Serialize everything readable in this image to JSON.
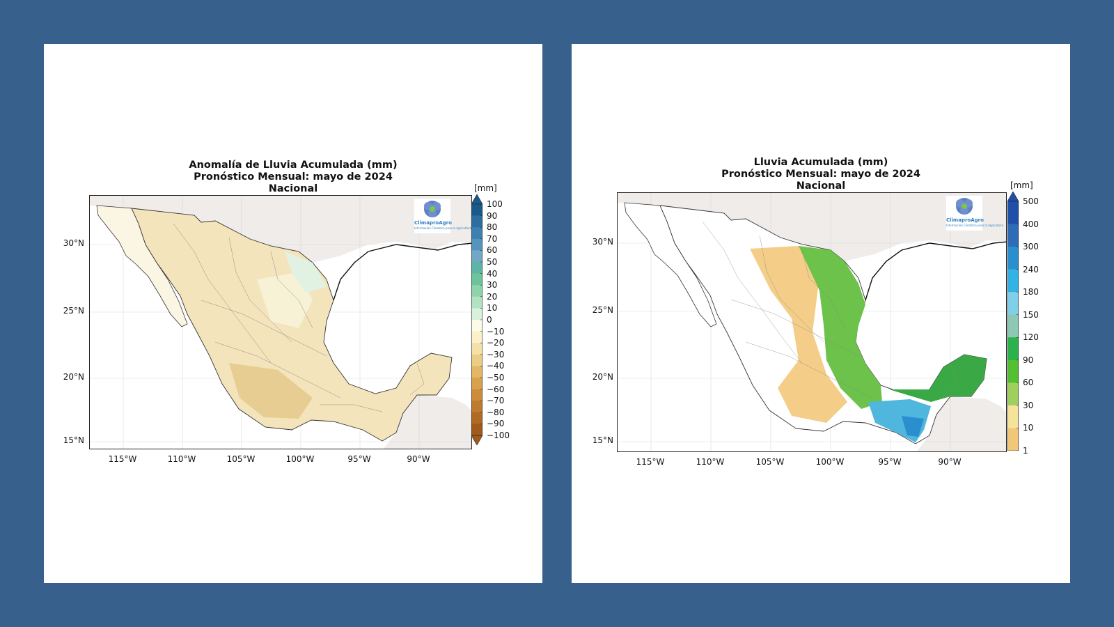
{
  "maps": [
    {
      "title": [
        "Anomalía de Lluvia Acumulada (mm)",
        "Pronóstico Mensual: mayo de 2024",
        "Nacional"
      ],
      "unit": "[mm]",
      "lat_ticks": [
        "30°N",
        "25°N",
        "20°N",
        "15°N"
      ],
      "lon_ticks": [
        "115°W",
        "110°W",
        "105°W",
        "100°W",
        "95°W",
        "90°W"
      ],
      "colorbar_ticks": [
        "100",
        "90",
        "80",
        "70",
        "60",
        "50",
        "40",
        "30",
        "20",
        "10",
        "0",
        "−10",
        "−20",
        "−30",
        "−40",
        "−50",
        "−60",
        "−70",
        "−80",
        "−90",
        "−100"
      ],
      "colorbar_colors": [
        "#1a5a8a",
        "#2b6ea1",
        "#3d81b1",
        "#5693bd",
        "#73a8c4",
        "#5db5a5",
        "#6dc49b",
        "#8fd3aa",
        "#b2e2c2",
        "#d8f0dc",
        "#fbfbe8",
        "#fbf0c8",
        "#f5e0a8",
        "#eccd86",
        "#e2b866",
        "#d7a14e",
        "#cc8c3c",
        "#be7a2e",
        "#b06a24",
        "#a05a1c"
      ],
      "logo_text": "ClimaproAgro",
      "logo_sub": "Información Climática para la Agricultura"
    },
    {
      "title": [
        "Lluvia Acumulada (mm)",
        "Pronóstico Mensual: mayo de 2024",
        "Nacional"
      ],
      "unit": "[mm]",
      "lat_ticks": [
        "30°N",
        "25°N",
        "20°N",
        "15°N"
      ],
      "lon_ticks": [
        "115°W",
        "110°W",
        "105°W",
        "100°W",
        "95°W",
        "90°W"
      ],
      "colorbar_ticks": [
        "500",
        "400",
        "300",
        "240",
        "180",
        "150",
        "120",
        "90",
        "60",
        "30",
        "10",
        "1"
      ],
      "colorbar_colors": [
        "#1f4fa8",
        "#2f6cb8",
        "#2a8fcf",
        "#33b2e4",
        "#7fcfe8",
        "#8cc8b4",
        "#2bb24c",
        "#52c030",
        "#9fd05e",
        "#f6e39a",
        "#f2c878"
      ],
      "logo_text": "ClimaproAgro",
      "logo_sub": "Información Climática para la Agricultura"
    }
  ]
}
